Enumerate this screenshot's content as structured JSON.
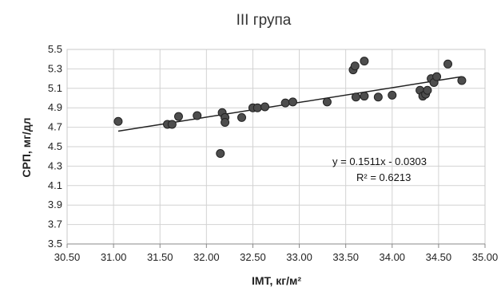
{
  "chart_data": {
    "type": "scatter",
    "title": "III група",
    "xlabel": "IMT, кг/м²",
    "ylabel": "СРП, мг/дл",
    "xlim": [
      30.5,
      35.0
    ],
    "ylim": [
      3.5,
      5.5
    ],
    "x_ticks": [
      "30.50",
      "31.00",
      "31.50",
      "32.00",
      "32.50",
      "33.00",
      "33.50",
      "34.00",
      "34.50",
      "35.00"
    ],
    "y_ticks": [
      "3.5",
      "3.7",
      "3.9",
      "4.1",
      "4.3",
      "4.5",
      "4.7",
      "4.9",
      "5.1",
      "5.3",
      "5.5"
    ],
    "grid": true,
    "marker_color": "#4d4d4d",
    "trendline_color": "#222222",
    "series": [
      {
        "points": [
          {
            "x": 31.05,
            "y": 4.76
          },
          {
            "x": 31.58,
            "y": 4.73
          },
          {
            "x": 31.63,
            "y": 4.73
          },
          {
            "x": 31.7,
            "y": 4.81
          },
          {
            "x": 31.9,
            "y": 4.82
          },
          {
            "x": 32.15,
            "y": 4.43
          },
          {
            "x": 32.17,
            "y": 4.85
          },
          {
            "x": 32.2,
            "y": 4.8
          },
          {
            "x": 32.2,
            "y": 4.75
          },
          {
            "x": 32.38,
            "y": 4.8
          },
          {
            "x": 32.5,
            "y": 4.9
          },
          {
            "x": 32.55,
            "y": 4.9
          },
          {
            "x": 32.63,
            "y": 4.91
          },
          {
            "x": 32.85,
            "y": 4.95
          },
          {
            "x": 32.93,
            "y": 4.96
          },
          {
            "x": 33.3,
            "y": 4.96
          },
          {
            "x": 33.58,
            "y": 5.29
          },
          {
            "x": 33.6,
            "y": 5.33
          },
          {
            "x": 33.61,
            "y": 5.01
          },
          {
            "x": 33.7,
            "y": 5.38
          },
          {
            "x": 33.7,
            "y": 5.02
          },
          {
            "x": 33.85,
            "y": 5.01
          },
          {
            "x": 34.0,
            "y": 5.03
          },
          {
            "x": 34.3,
            "y": 5.08
          },
          {
            "x": 34.33,
            "y": 5.02
          },
          {
            "x": 34.36,
            "y": 5.04
          },
          {
            "x": 34.38,
            "y": 5.08
          },
          {
            "x": 34.42,
            "y": 5.2
          },
          {
            "x": 34.45,
            "y": 5.16
          },
          {
            "x": 34.48,
            "y": 5.22
          },
          {
            "x": 34.6,
            "y": 5.35
          },
          {
            "x": 34.75,
            "y": 5.18
          }
        ]
      }
    ],
    "trendline": {
      "x": [
        31.05,
        34.75
      ],
      "y": [
        4.66,
        5.22
      ]
    },
    "annotations": {
      "equation": "y = 0.1511x - 0.0303",
      "r2": "R² = 0.6213"
    }
  }
}
